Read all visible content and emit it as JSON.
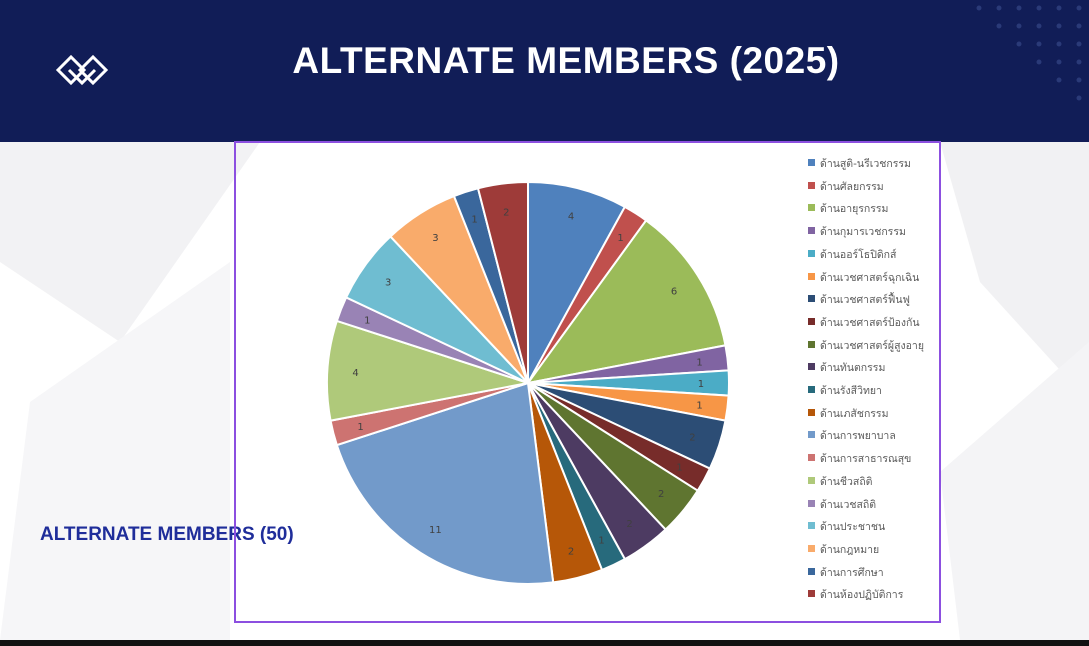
{
  "header": {
    "title": "ALTERNATE MEMBERS (2025)",
    "background": "#111d57"
  },
  "side_label": "ALTERNATE MEMBERS (50)",
  "chart_data": {
    "type": "pie",
    "total": 50,
    "start": "12 o'clock, clockwise",
    "legend_position": "right",
    "slices": [
      {
        "name": "ด้านสูติ-นรีเวชกรรม",
        "value": 4,
        "color": "#4f81bd"
      },
      {
        "name": "ด้านศัลยกรรม",
        "value": 1,
        "color": "#c0504d"
      },
      {
        "name": "ด้านอายุรกรรม",
        "value": 6,
        "color": "#9bbb59"
      },
      {
        "name": "ด้านกุมารเวชกรรม",
        "value": 1,
        "color": "#8064a2"
      },
      {
        "name": "ด้านออร์โธปิดิกส์",
        "value": 1,
        "color": "#4bacc6"
      },
      {
        "name": "ด้านเวชศาสตร์ฉุกเฉิน",
        "value": 1,
        "color": "#f79646"
      },
      {
        "name": "ด้านเวชศาสตร์ฟื้นฟู",
        "value": 2,
        "color": "#2c4d75"
      },
      {
        "name": "ด้านเวชศาสตร์ป้องกัน",
        "value": 1,
        "color": "#772c2a"
      },
      {
        "name": "ด้านเวชศาสตร์ผู้สูงอายุ",
        "value": 2,
        "color": "#5f7530"
      },
      {
        "name": "ด้านทันตกรรม",
        "value": 2,
        "color": "#4d3b62"
      },
      {
        "name": "ด้านรังสีวิทยา",
        "value": 1,
        "color": "#276a7c"
      },
      {
        "name": "ด้านเภสัชกรรม",
        "value": 2,
        "color": "#b65708"
      },
      {
        "name": "ด้านการพยาบาล",
        "value": 11,
        "color": "#729aca"
      },
      {
        "name": "ด้านการสาธารณสุข",
        "value": 1,
        "color": "#cd7371"
      },
      {
        "name": "ด้านชีวสถิติ",
        "value": 4,
        "color": "#afc97a"
      },
      {
        "name": "ด้านเวชสถิติ",
        "value": 1,
        "color": "#9983b5"
      },
      {
        "name": "ด้านประชาชน",
        "value": 3,
        "color": "#6fbdd1"
      },
      {
        "name": "ด้านกฎหมาย",
        "value": 3,
        "color": "#f9ab6b"
      },
      {
        "name": "ด้านการศึกษา",
        "value": 1,
        "color": "#3a679c"
      },
      {
        "name": "ด้านห้องปฏิบัติการ",
        "value": 2,
        "color": "#9e3b39"
      }
    ]
  }
}
